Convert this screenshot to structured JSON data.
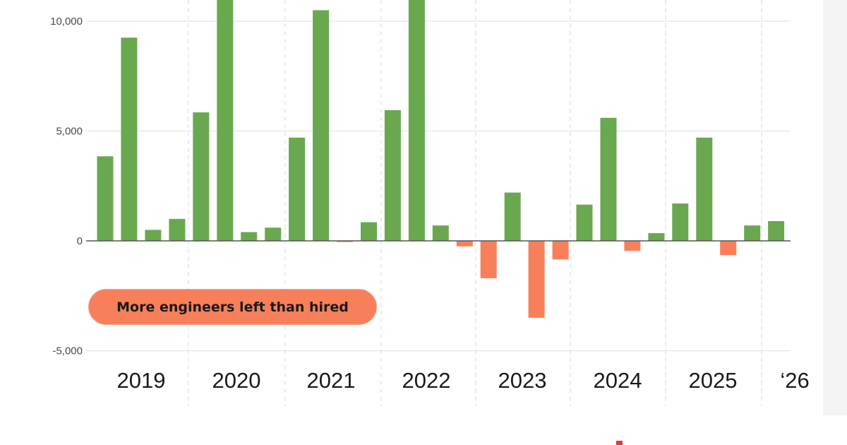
{
  "colors": {
    "positive": "#6aa84f",
    "negative": "#f7805a",
    "annotation_bg": "#f7805a",
    "grid": "#e3e3e3",
    "zero_line": "#555555",
    "year_divider": "#d6def5"
  },
  "annotation": {
    "text": "More engineers left than hired"
  },
  "chart_data": {
    "type": "bar",
    "title": "",
    "xlabel": "",
    "ylabel": "",
    "ylim": [
      -5000,
      10000
    ],
    "yticks": [
      {
        "value": 10000,
        "label": "10,000"
      },
      {
        "value": 5000,
        "label": "5,000"
      },
      {
        "value": 0,
        "label": "0"
      },
      {
        "value": -5000,
        "label": "-5,000"
      }
    ],
    "x_labels": [
      "2019",
      "2020",
      "2021",
      "2022",
      "2023",
      "2024",
      "2025",
      "‘26"
    ],
    "grid": true,
    "values": [
      3850,
      9250,
      500,
      1000,
      5850,
      11000,
      400,
      600,
      4700,
      10500,
      -50,
      850,
      5950,
      11000,
      700,
      -250,
      -1700,
      2200,
      -3500,
      -850,
      1650,
      5600,
      -450,
      350,
      1700,
      4700,
      -650,
      700,
      900
    ]
  }
}
